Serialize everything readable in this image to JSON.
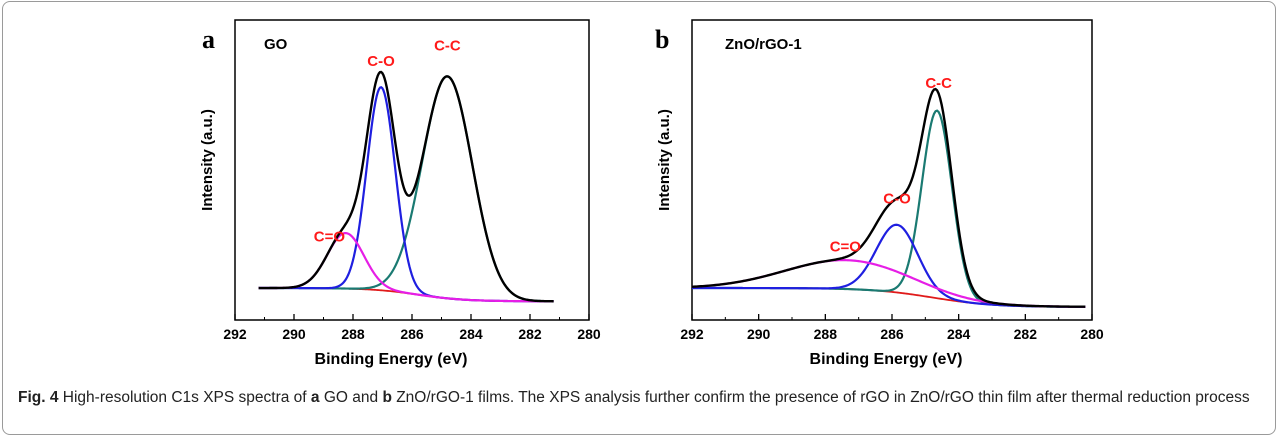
{
  "figure": {
    "caption": {
      "label": "Fig. 4",
      "t1": " High-resolution C1s XPS spectra of ",
      "b1": "a",
      "t2": " GO and ",
      "b2": "b",
      "t3": " ZnO/rGO-1 films. The XPS analysis further confirm the presence of rGO in ZnO/rGO thin film after thermal reduction process"
    }
  },
  "colors": {
    "envelope": "#000000",
    "c_c": "#1a7a72",
    "c_o": "#1f1fe0",
    "c_eq_o": "#e61ee6",
    "background_line": "#e01b1b",
    "peak_label": "#ff1a1a"
  },
  "chart_data": [
    {
      "type": "line",
      "panel_letter": "a",
      "sample_label": "GO",
      "xlabel": "Binding Energy (eV)",
      "ylabel": "Intensity (a.u.)",
      "xlim": [
        292,
        280
      ],
      "x_reversed": true,
      "ylim": [
        0,
        1.15
      ],
      "yticks_shown": false,
      "xticks": [
        292,
        290,
        288,
        286,
        284,
        282,
        280
      ],
      "x_range": [
        291.2,
        281.2
      ],
      "baseline": {
        "start": 0.0,
        "end": -0.06,
        "mid": 285.8,
        "width": 0.8
      },
      "components": [
        {
          "name": "C-C",
          "center": 284.8,
          "height": 1.0,
          "sigma": 0.85,
          "color_key": "c_c"
        },
        {
          "name": "C-O",
          "center": 287.05,
          "height": 0.915,
          "sigma": 0.48,
          "color_key": "c_o"
        },
        {
          "name": "C=O",
          "center": 288.25,
          "height": 0.25,
          "sigma": 0.62,
          "color_key": "c_eq_o"
        }
      ],
      "peak_labels": [
        {
          "text": "C-C",
          "x": 284.8,
          "y": 1.07
        },
        {
          "text": "C-O",
          "x": 287.05,
          "y": 1.0
        },
        {
          "text": "C=O",
          "x": 288.8,
          "y": 0.21
        }
      ]
    },
    {
      "type": "line",
      "panel_letter": "b",
      "sample_label": "ZnO/rGO-1",
      "xlabel": "Binding Energy (eV)",
      "ylabel": "Intensity (a.u.)",
      "xlim": [
        292,
        280
      ],
      "x_reversed": true,
      "ylim": [
        0,
        1.15
      ],
      "yticks_shown": false,
      "xticks": [
        292,
        290,
        288,
        286,
        284,
        282,
        280
      ],
      "x_range": [
        292.0,
        280.2
      ],
      "baseline": {
        "start": 0.0,
        "end": -0.085,
        "mid": 284.8,
        "width": 0.9
      },
      "components": [
        {
          "name": "C-C",
          "center": 284.65,
          "height": 0.845,
          "sigma": 0.45,
          "color_key": "c_c"
        },
        {
          "name": "C-O",
          "center": 285.85,
          "height": 0.305,
          "sigma": 0.62,
          "color_key": "c_o"
        },
        {
          "name": "C=O",
          "center": 287.35,
          "height": 0.13,
          "sigma": 1.85,
          "color_key": "c_eq_o"
        }
      ],
      "peak_labels": [
        {
          "text": "C-C",
          "x": 284.6,
          "y": 0.9
        },
        {
          "text": "C-O",
          "x": 285.85,
          "y": 0.38
        },
        {
          "text": "C=O",
          "x": 287.4,
          "y": 0.165
        }
      ]
    }
  ]
}
